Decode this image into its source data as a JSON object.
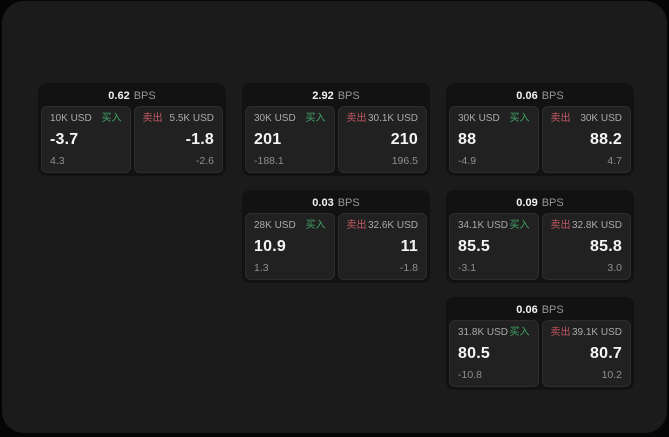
{
  "labels": {
    "buy": "买入",
    "sell": "卖出",
    "bps": "BPS"
  },
  "colors": {
    "background": "#050505",
    "panel": "#1b1b1b",
    "card": "#121212",
    "subpanel": "#212121",
    "buy": "#43a567",
    "sell": "#c25863",
    "value": "#f5f5f5",
    "muted": "#aaaaaa",
    "dim": "#8f8f8f"
  },
  "cards": [
    {
      "row": 1,
      "col": 1,
      "bps": "0.62",
      "buy": {
        "size": "10K USD",
        "value": "-3.7",
        "change": "4.3"
      },
      "sell": {
        "size": "5.5K USD",
        "value": "-1.8",
        "change": "-2.6"
      }
    },
    {
      "row": 1,
      "col": 2,
      "bps": "2.92",
      "buy": {
        "size": "30K USD",
        "value": "201",
        "change": "-188.1"
      },
      "sell": {
        "size": "30.1K USD",
        "value": "210",
        "change": "196.5"
      }
    },
    {
      "row": 1,
      "col": 3,
      "bps": "0.06",
      "buy": {
        "size": "30K USD",
        "value": "88",
        "change": "-4.9"
      },
      "sell": {
        "size": "30K USD",
        "value": "88.2",
        "change": "4.7"
      }
    },
    {
      "row": 2,
      "col": 2,
      "bps": "0.03",
      "buy": {
        "size": "28K USD",
        "value": "10.9",
        "change": "1.3"
      },
      "sell": {
        "size": "32.6K USD",
        "value": "11",
        "change": "-1.8"
      }
    },
    {
      "row": 2,
      "col": 3,
      "bps": "0.09",
      "buy": {
        "size": "34.1K USD",
        "value": "85.5",
        "change": "-3.1"
      },
      "sell": {
        "size": "32.8K USD",
        "value": "85.8",
        "change": "3.0"
      }
    },
    {
      "row": 3,
      "col": 3,
      "bps": "0.06",
      "buy": {
        "size": "31.8K USD",
        "value": "80.5",
        "change": "-10.8"
      },
      "sell": {
        "size": "39.1K USD",
        "value": "80.7",
        "change": "10.2"
      }
    }
  ]
}
